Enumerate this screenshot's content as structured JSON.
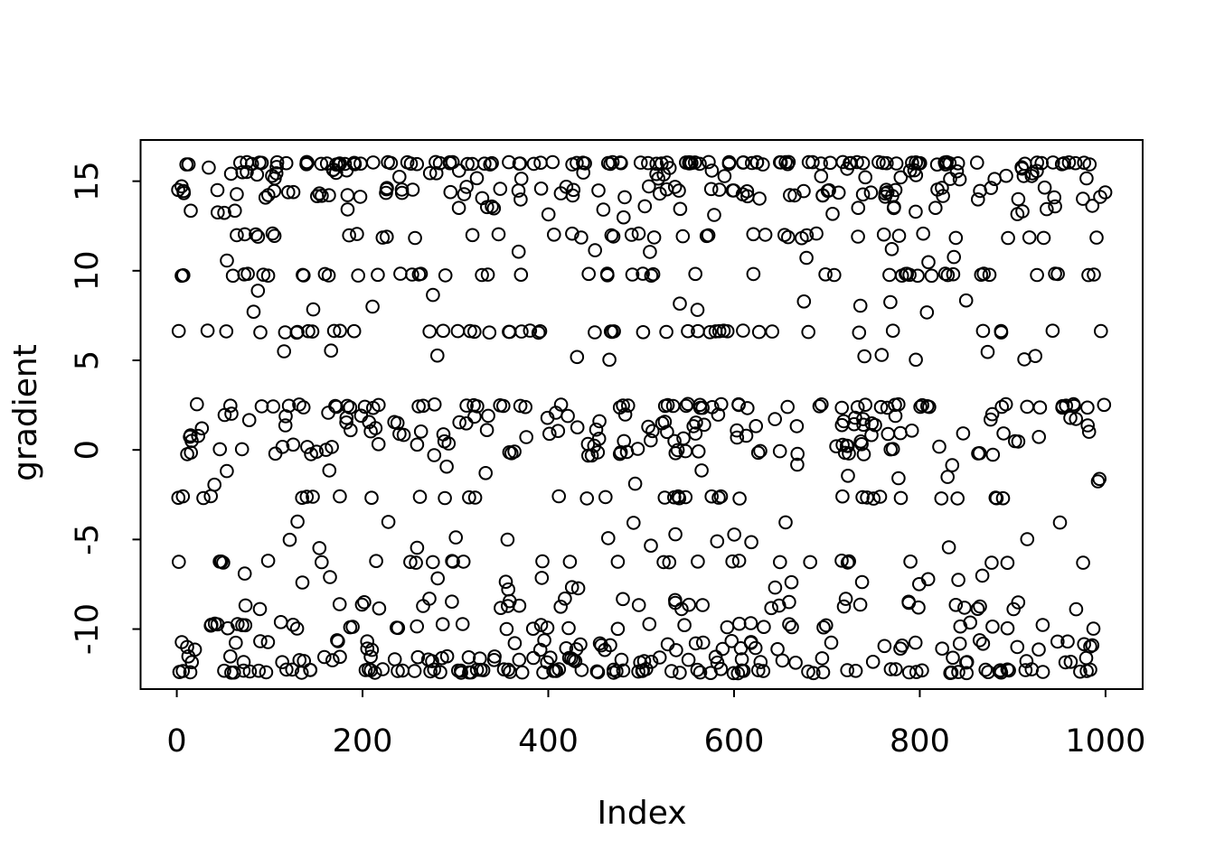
{
  "figure": {
    "background_color": "#ffffff",
    "foreground_color": "#000000"
  },
  "chart_data": {
    "type": "scatter",
    "title": "",
    "xlabel": "Index",
    "ylabel": "gradient",
    "x_ticks": [
      0,
      200,
      400,
      600,
      800,
      1000
    ],
    "x_tick_labels": [
      "0",
      "200",
      "400",
      "600",
      "800",
      "1000"
    ],
    "y_ticks": [
      -10,
      -5,
      0,
      5,
      10,
      15
    ],
    "y_tick_labels": [
      "-10",
      "-5",
      "0",
      "5",
      "10",
      "15"
    ],
    "xlim": [
      -39,
      1040
    ],
    "ylim": [
      -13.35,
      17.3
    ],
    "x_index_range": [
      1,
      1000
    ],
    "grid": false,
    "legend": null,
    "marker": {
      "shape": "open-circle",
      "radius_px": 6.8,
      "stroke_px": 2,
      "color": "#000000"
    },
    "seed": 7,
    "bands": [
      {
        "gradient": 16.0,
        "count": 115,
        "jitter": 0.07
      },
      {
        "gradient": 15.45,
        "count": 45,
        "jitter": 0.35
      },
      {
        "gradient": 14.35,
        "count": 78,
        "jitter": 0.38
      },
      {
        "gradient": 13.3,
        "count": 26,
        "jitter": 0.35
      },
      {
        "gradient": 11.95,
        "count": 40,
        "jitter": 0.14
      },
      {
        "gradient": 10.8,
        "count": 8,
        "jitter": 0.45
      },
      {
        "gradient": 9.78,
        "count": 50,
        "jitter": 0.06
      },
      {
        "gradient": 8.4,
        "count": 12,
        "jitter": 0.75
      },
      {
        "gradient": 6.6,
        "count": 48,
        "jitter": 0.06
      },
      {
        "gradient": 5.1,
        "count": 11,
        "jitter": 0.45
      },
      {
        "gradient": 2.45,
        "count": 66,
        "jitter": 0.12
      },
      {
        "gradient": 1.35,
        "count": 78,
        "jitter": 0.75
      },
      {
        "gradient": 0.1,
        "count": 58,
        "jitter": 0.45
      },
      {
        "gradient": -1.4,
        "count": 14,
        "jitter": 0.6
      },
      {
        "gradient": -2.65,
        "count": 36,
        "jitter": 0.07
      },
      {
        "gradient": -3.8,
        "count": 5,
        "jitter": 0.3
      },
      {
        "gradient": -5.1,
        "count": 13,
        "jitter": 0.4
      },
      {
        "gradient": -6.25,
        "count": 30,
        "jitter": 0.07
      },
      {
        "gradient": -7.4,
        "count": 16,
        "jitter": 0.5
      },
      {
        "gradient": -8.6,
        "count": 38,
        "jitter": 0.3
      },
      {
        "gradient": -9.8,
        "count": 40,
        "jitter": 0.2
      },
      {
        "gradient": -10.9,
        "count": 48,
        "jitter": 0.28
      },
      {
        "gradient": -11.7,
        "count": 50,
        "jitter": 0.18
      },
      {
        "gradient": -12.35,
        "count": 95,
        "jitter": 0.12
      }
    ]
  }
}
